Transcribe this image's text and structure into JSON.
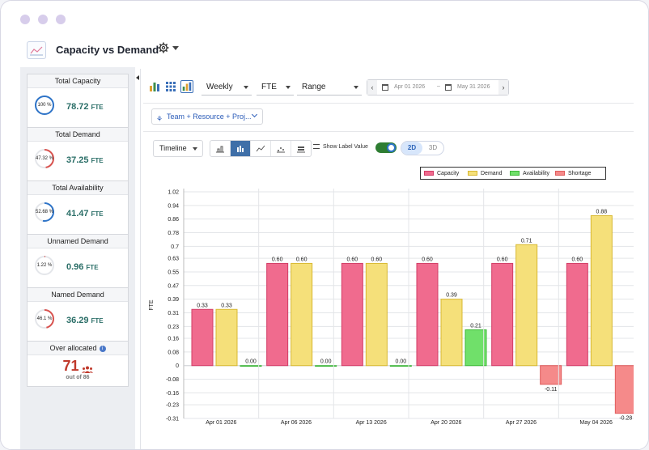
{
  "header": {
    "title": "Capacity vs Demand"
  },
  "sidebar": {
    "cards": [
      {
        "title": "Total Capacity",
        "percent": "100 %",
        "pct_value": 100,
        "value": "78.72",
        "unit": "FTE",
        "ring_color": "#2e74c8"
      },
      {
        "title": "Total Demand",
        "percent": "47.32 %",
        "pct_value": 47.32,
        "value": "37.25",
        "unit": "FTE",
        "ring_color": "#d9534f"
      },
      {
        "title": "Total Availability",
        "percent": "52.68 %",
        "pct_value": 52.68,
        "value": "41.47",
        "unit": "FTE",
        "ring_color": "#2e74c8"
      },
      {
        "title": "Unnamed Demand",
        "percent": "1.22 %",
        "pct_value": 1.22,
        "value": "0.96",
        "unit": "FTE",
        "ring_color": "#d9534f"
      },
      {
        "title": "Named Demand",
        "percent": "46.1 %",
        "pct_value": 46.1,
        "value": "36.29",
        "unit": "FTE",
        "ring_color": "#d9534f"
      }
    ],
    "over_allocated": {
      "title": "Over allocated",
      "value": "71",
      "subtext": "out of 86"
    }
  },
  "toolbar": {
    "period": "Weekly",
    "measure": "FTE",
    "range": "Range",
    "start_date": "Apr 01 2026",
    "date_separator": "–",
    "end_date": "May 31 2026",
    "grouping": "Team + Resource + Proj...",
    "view": "Timeline",
    "show_label_value": "Show Label Value",
    "dim_2d": "2D",
    "dim_3d": "3D"
  },
  "chart_data": {
    "type": "bar",
    "categories": [
      "Apr 01 2026",
      "Apr 06 2026",
      "Apr 13 2026",
      "Apr 20 2026",
      "Apr 27 2026",
      "May 04 2026"
    ],
    "series": [
      {
        "name": "Capacity",
        "color": "#f06b8e",
        "values": [
          0.33,
          0.6,
          0.6,
          0.6,
          0.6,
          0.6
        ]
      },
      {
        "name": "Demand",
        "color": "#f5e07a",
        "values": [
          0.33,
          0.6,
          0.6,
          0.39,
          0.71,
          0.88
        ]
      },
      {
        "name": "Availability",
        "color": "#70e06a",
        "values": [
          0.0,
          0.0,
          0.0,
          0.21,
          null,
          null
        ]
      },
      {
        "name": "Shortage",
        "color": "#f58a8a",
        "values": [
          null,
          null,
          null,
          null,
          -0.11,
          -0.28
        ]
      }
    ],
    "data_labels": [
      [
        "0.33",
        "0.60",
        "0.60",
        "0.60",
        "0.60",
        "0.60"
      ],
      [
        "0.33",
        "0.60",
        "0.60",
        "0.39",
        "0.71",
        "0.88"
      ],
      [
        "0.00",
        "0.00",
        "0.00",
        "0.21",
        "",
        ""
      ],
      [
        "",
        "",
        "",
        "",
        "-0.11",
        "-0.28"
      ]
    ],
    "ylabel": "FTE",
    "xlabel": "",
    "yticks": [
      "1.02",
      "0.94",
      "0.86",
      "0.78",
      "0.7",
      "0.63",
      "0.55",
      "0.47",
      "0.39",
      "0.31",
      "0.23",
      "0.16",
      "0.08",
      "0",
      "-0.08",
      "-0.16",
      "-0.23",
      "-0.31"
    ],
    "ylim": [
      -0.31,
      1.02
    ],
    "grid": true,
    "legend": "top-right"
  }
}
